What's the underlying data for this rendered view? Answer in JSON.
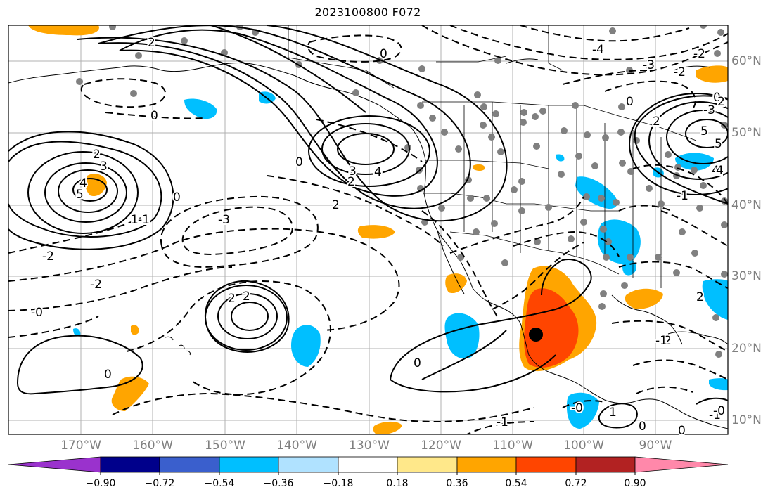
{
  "title": "2023100800 F072",
  "lon_labels": [
    "170°W",
    "160°W",
    "150°W",
    "140°W",
    "130°W",
    "120°W",
    "110°W",
    "100°W",
    "90°W"
  ],
  "lat_labels": [
    "60°N",
    "50°N",
    "40°N",
    "30°N",
    "20°N",
    "10°N"
  ],
  "colorbar": {
    "tick_labels": [
      "−0.90",
      "−0.72",
      "−0.54",
      "−0.36",
      "−0.18",
      "0.18",
      "0.36",
      "0.54",
      "0.72",
      "0.90"
    ],
    "colors": [
      "#9a32cd",
      "#00008b",
      "#3a5fcd",
      "#00bfff",
      "#b0e2ff",
      "#ffffff",
      "#ffe88a",
      "#ffa500",
      "#ff4500",
      "#b22222",
      "#ff88aa"
    ]
  },
  "contour_labels": [
    "2",
    "0",
    "-3",
    "3",
    "2",
    "0",
    "5",
    "4",
    "0",
    "3",
    "2",
    "4",
    "2",
    "-4",
    "3",
    "4",
    "5",
    "0",
    "2",
    "1",
    "0",
    "-1",
    "-1",
    "-3",
    "-2",
    "-2",
    "-0",
    "2",
    "2",
    "0",
    "-0",
    "0",
    "2",
    "-1",
    "1",
    "-0",
    "0",
    "-1",
    "-2",
    "0",
    "-3",
    "-2",
    "2",
    "0",
    "5",
    "4",
    "-1",
    "2"
  ],
  "marker": {
    "label": "center-marker",
    "color": "#000000"
  },
  "colors": {
    "orange": "#ffa500",
    "red": "#ff4500",
    "cyan": "#00bfff",
    "dot": "#808080",
    "grid": "#b0b0b0"
  }
}
